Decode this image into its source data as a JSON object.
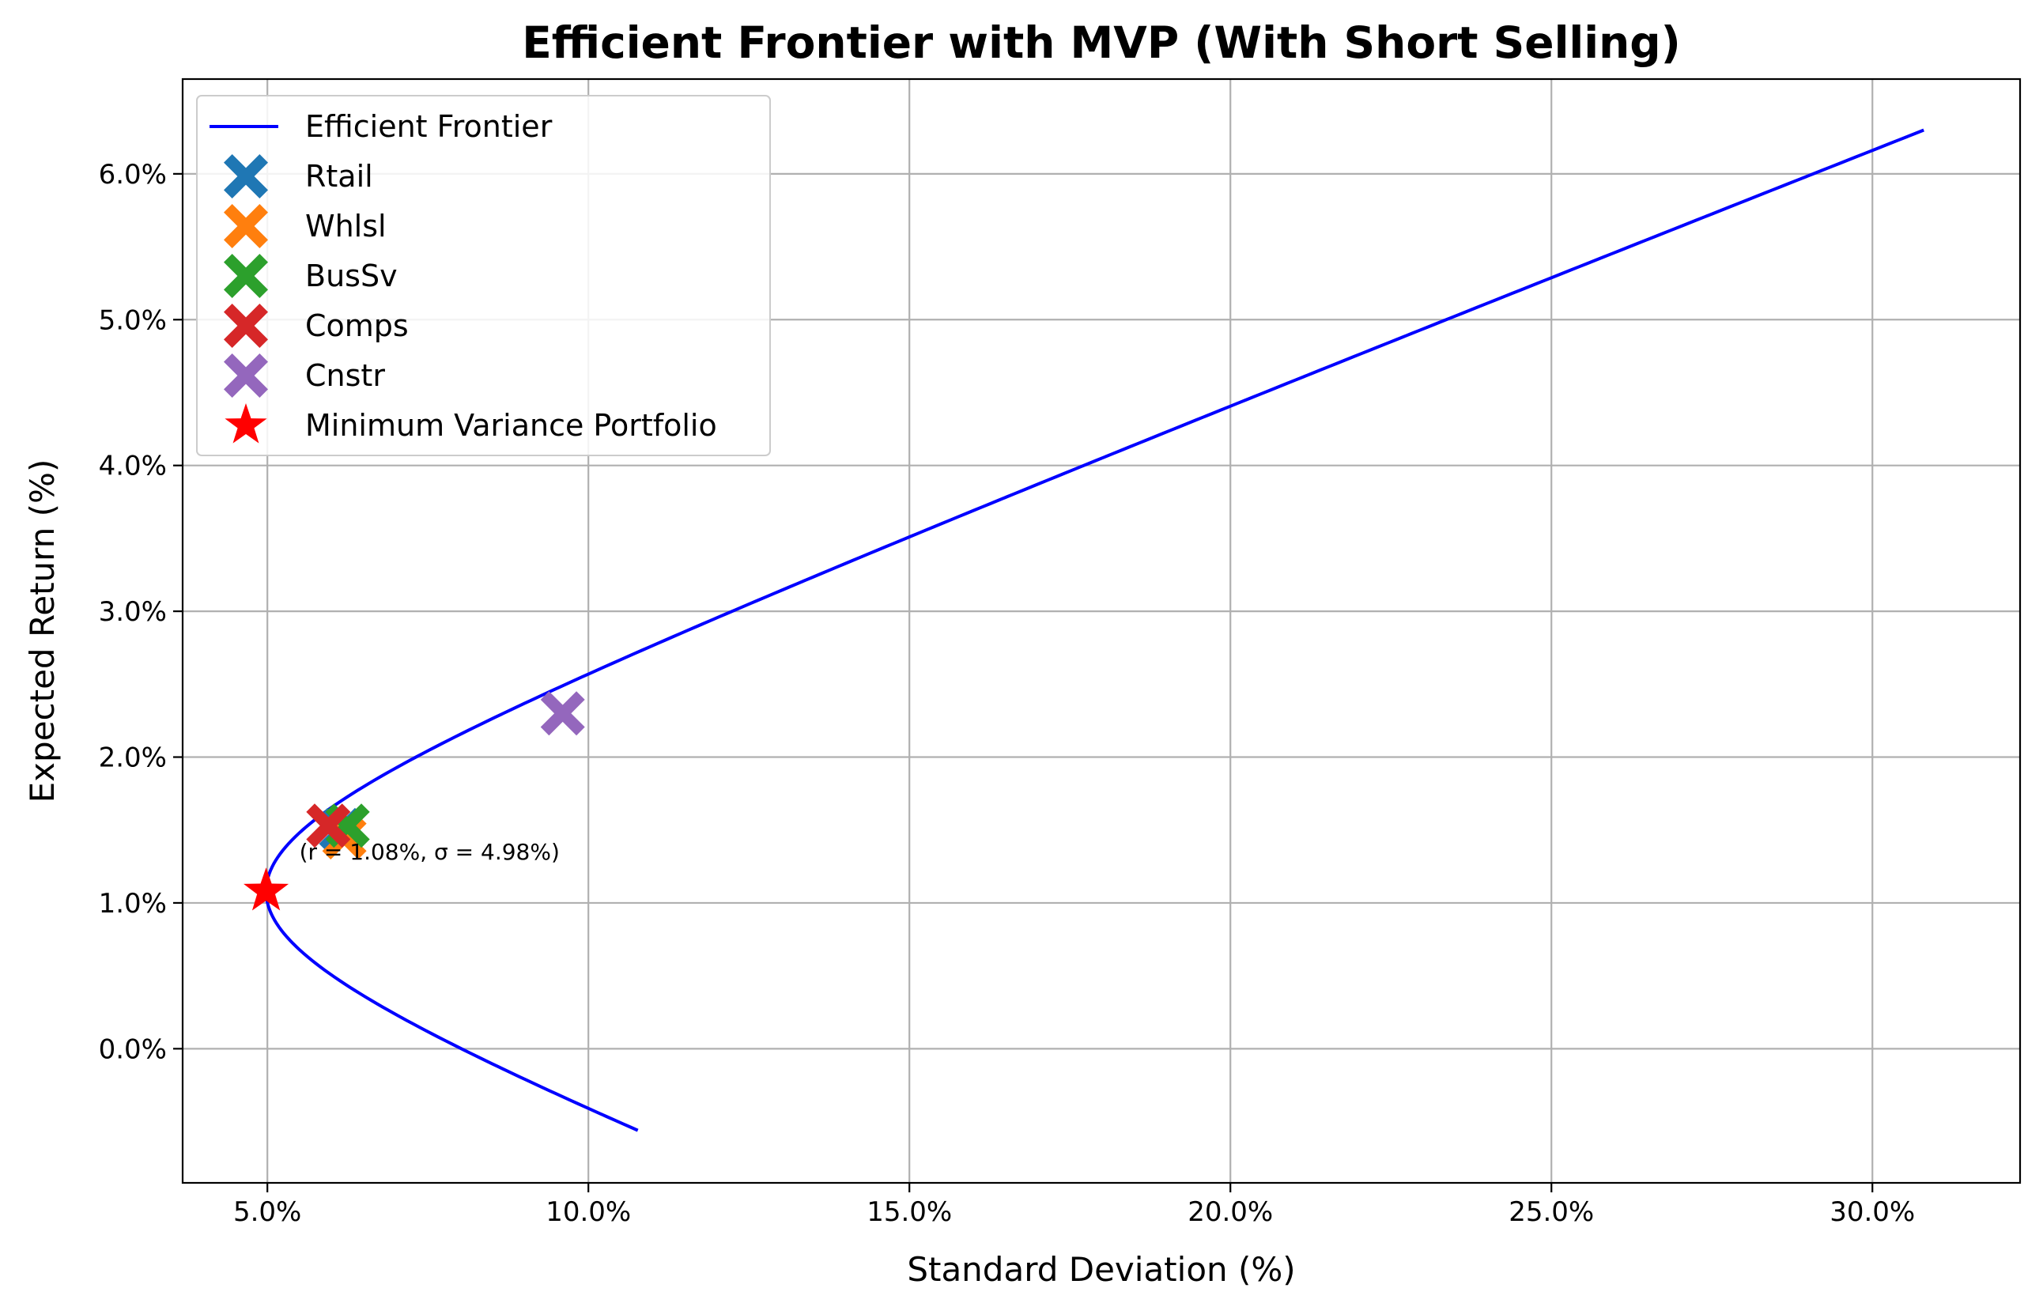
{
  "chart_data": {
    "type": "scatter",
    "title": "Efficient Frontier with MVP (With Short Selling)",
    "xlabel": "Standard Deviation (%)",
    "ylabel": "Expected Return (%)",
    "xlim": [
      3.68,
      32.3
    ],
    "ylim": [
      -0.92,
      6.65
    ],
    "xticks": [
      5,
      10,
      15,
      20,
      25,
      30
    ],
    "xtick_labels": [
      "5.0%",
      "10.0%",
      "15.0%",
      "20.0%",
      "25.0%",
      "30.0%"
    ],
    "yticks": [
      0,
      1,
      2,
      3,
      4,
      5,
      6
    ],
    "ytick_labels": [
      "0.0%",
      "1.0%",
      "2.0%",
      "3.0%",
      "4.0%",
      "5.0%",
      "6.0%"
    ],
    "grid": true,
    "legend_position": "top-left",
    "frontier": {
      "name": "Efficient Frontier",
      "color": "#0000ff",
      "mvp_return": 1.08,
      "mvp_std": 4.98,
      "return_range": [
        -0.56,
        6.3
      ]
    },
    "assets": [
      {
        "name": "Rtail",
        "std": 6.15,
        "ret": 1.5,
        "color": "#1f77b4",
        "marker": "X"
      },
      {
        "name": "Whlsl",
        "std": 6.2,
        "ret": 1.45,
        "color": "#ff7f0e",
        "marker": "X"
      },
      {
        "name": "BusSv",
        "std": 6.25,
        "ret": 1.53,
        "color": "#2ca02c",
        "marker": "X"
      },
      {
        "name": "Comps",
        "std": 5.95,
        "ret": 1.53,
        "color": "#d62728",
        "marker": "X"
      },
      {
        "name": "Cnstr",
        "std": 9.6,
        "ret": 2.3,
        "color": "#9467bd",
        "marker": "X"
      }
    ],
    "mvp": {
      "name": "Minimum Variance Portfolio",
      "std": 4.98,
      "ret": 1.08,
      "color": "#ff0000",
      "marker": "star"
    },
    "annotation": "(r = 1.08%, σ = 4.98%)"
  }
}
